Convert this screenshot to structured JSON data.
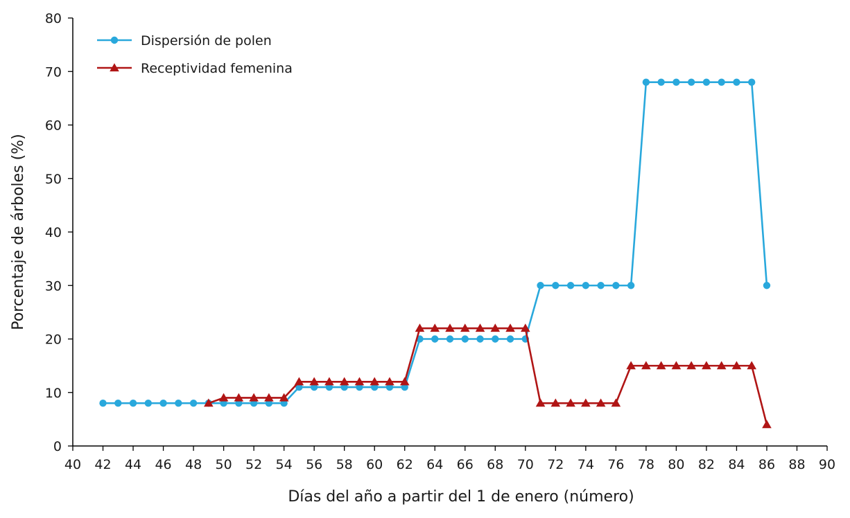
{
  "chart_data": {
    "type": "line",
    "xlabel": "Días del año a partir del 1 de enero (número)",
    "ylabel": "Porcentaje de árboles (%)",
    "xlim": [
      40,
      90
    ],
    "ylim": [
      0,
      80
    ],
    "xticks": [
      40,
      42,
      44,
      46,
      48,
      50,
      52,
      54,
      56,
      58,
      60,
      62,
      64,
      66,
      68,
      70,
      72,
      74,
      76,
      78,
      80,
      82,
      84,
      86,
      88,
      90
    ],
    "yticks": [
      0,
      10,
      20,
      30,
      40,
      50,
      60,
      70,
      80
    ],
    "grid": false,
    "legend_position": "top-left",
    "series": [
      {
        "name": "Dispersión de polen",
        "color": "#29a8dc",
        "marker": "circle",
        "x": [
          42,
          43,
          44,
          45,
          46,
          47,
          48,
          49,
          50,
          51,
          52,
          53,
          54,
          55,
          56,
          57,
          58,
          59,
          60,
          61,
          62,
          63,
          64,
          65,
          66,
          67,
          68,
          69,
          70,
          71,
          72,
          73,
          74,
          75,
          76,
          77,
          78,
          79,
          80,
          81,
          82,
          83,
          84,
          85,
          86
        ],
        "y": [
          8,
          8,
          8,
          8,
          8,
          8,
          8,
          8,
          8,
          8,
          8,
          8,
          8,
          11,
          11,
          11,
          11,
          11,
          11,
          11,
          11,
          20,
          20,
          20,
          20,
          20,
          20,
          20,
          20,
          30,
          30,
          30,
          30,
          30,
          30,
          30,
          68,
          68,
          68,
          68,
          68,
          68,
          68,
          68,
          30
        ]
      },
      {
        "name": "Receptividad femenina",
        "color": "#b01515",
        "marker": "triangle",
        "x": [
          49,
          50,
          51,
          52,
          53,
          54,
          55,
          56,
          57,
          58,
          59,
          60,
          61,
          62,
          63,
          64,
          65,
          66,
          67,
          68,
          69,
          70,
          71,
          72,
          73,
          74,
          75,
          76,
          77,
          78,
          79,
          80,
          81,
          82,
          83,
          84,
          85,
          86
        ],
        "y": [
          8,
          9,
          9,
          9,
          9,
          9,
          12,
          12,
          12,
          12,
          12,
          12,
          12,
          12,
          22,
          22,
          22,
          22,
          22,
          22,
          22,
          22,
          8,
          8,
          8,
          8,
          8,
          8,
          15,
          15,
          15,
          15,
          15,
          15,
          15,
          15,
          15,
          4
        ]
      }
    ]
  }
}
